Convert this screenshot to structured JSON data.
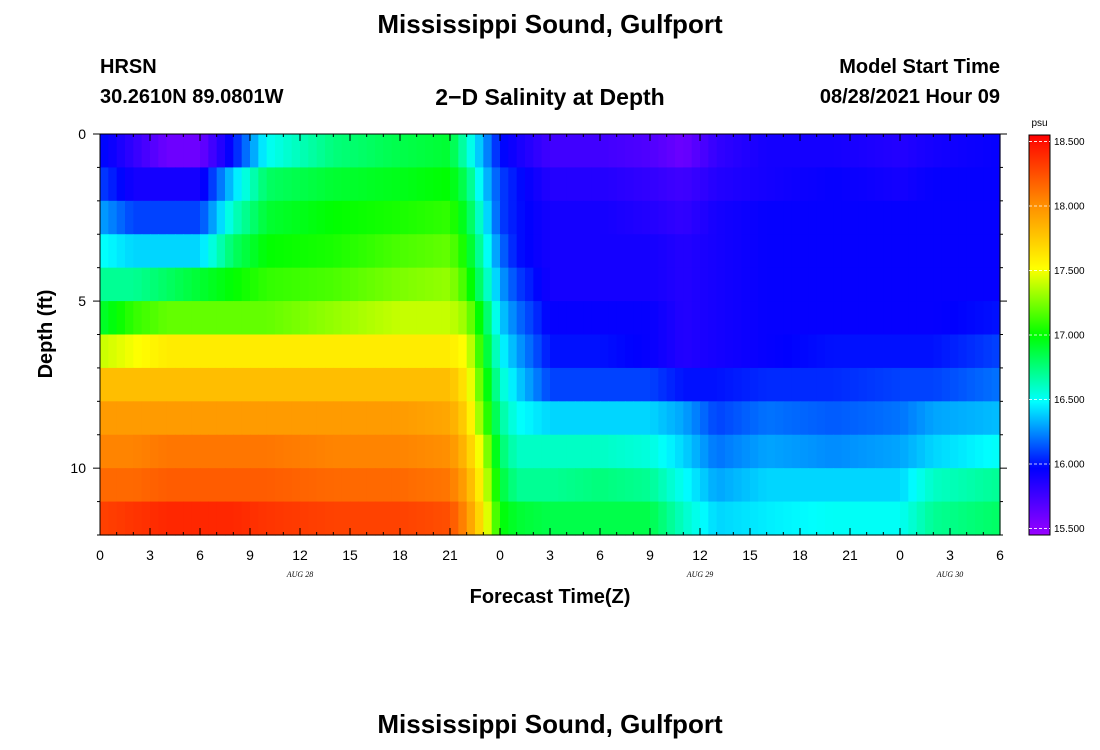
{
  "header": {
    "title": "Mississippi Sound, Gulfport",
    "station_name": "HRSN",
    "station_coords": "30.2610N  89.0801W",
    "plot_title": "2−D Salinity at Depth",
    "model_label": "Model Start Time",
    "model_time": "08/28/2021 Hour 09"
  },
  "footer": {
    "title": "Mississippi Sound, Gulfport"
  },
  "chart_data": {
    "type": "heatmap",
    "title": "2−D Salinity at Depth",
    "xlabel": "Forecast Time(Z)",
    "ylabel": "Depth (ft)",
    "x_range_hours": [
      0,
      54
    ],
    "y_range_ft": [
      0,
      12
    ],
    "y_inverted": true,
    "x_ticks": [
      "0",
      "3",
      "6",
      "9",
      "12",
      "15",
      "18",
      "21",
      "0",
      "3",
      "6",
      "9",
      "12",
      "15",
      "18",
      "21",
      "0",
      "3",
      "6"
    ],
    "y_ticks": [
      {
        "value": 0,
        "label": "0"
      },
      {
        "value": 5,
        "label": "5"
      },
      {
        "value": 10,
        "label": "10"
      }
    ],
    "date_labels": [
      {
        "hour": 12,
        "label": "AUG  28"
      },
      {
        "hour": 36,
        "label": "AUG  29"
      },
      {
        "hour": 51,
        "label": "AUG  30"
      }
    ],
    "colorbar": {
      "unit": "psu",
      "min": 15.45,
      "max": 18.55,
      "ticks": [
        "15.500",
        "16.000",
        "16.500",
        "17.000",
        "17.500",
        "18.000",
        "18.500"
      ],
      "colors": [
        "#9900ff",
        "#0000ff",
        "#00ffff",
        "#00ff00",
        "#ffff00",
        "#ff8800",
        "#ff0000"
      ]
    },
    "depths_ft": [
      0.5,
      1.5,
      2.5,
      3.5,
      4.5,
      5.5,
      6.5,
      7.5,
      8.5,
      9.5,
      10.5,
      11.5
    ],
    "profiles": [
      {
        "hour": 0,
        "salinity": [
          16.0,
          16.1,
          16.3,
          16.5,
          16.7,
          16.9,
          17.4,
          17.8,
          17.95,
          18.05,
          18.15,
          18.3
        ]
      },
      {
        "hour": 2,
        "salinity": [
          15.8,
          15.9,
          16.1,
          16.4,
          16.7,
          17.1,
          17.5,
          17.8,
          17.95,
          18.05,
          18.15,
          18.35
        ]
      },
      {
        "hour": 4,
        "salinity": [
          15.6,
          15.9,
          16.1,
          16.4,
          16.8,
          17.2,
          17.6,
          17.8,
          17.95,
          18.1,
          18.2,
          18.4
        ]
      },
      {
        "hour": 6,
        "salinity": [
          15.6,
          15.9,
          16.1,
          16.4,
          16.9,
          17.2,
          17.6,
          17.8,
          17.95,
          18.1,
          18.2,
          18.4
        ]
      },
      {
        "hour": 8,
        "salinity": [
          16.0,
          16.4,
          16.6,
          16.8,
          17.0,
          17.2,
          17.6,
          17.8,
          17.95,
          18.1,
          18.2,
          18.4
        ]
      },
      {
        "hour": 10,
        "salinity": [
          16.5,
          16.8,
          16.9,
          17.0,
          17.1,
          17.2,
          17.6,
          17.8,
          17.95,
          18.1,
          18.2,
          18.35
        ]
      },
      {
        "hour": 14,
        "salinity": [
          16.75,
          16.9,
          17.0,
          17.05,
          17.15,
          17.3,
          17.6,
          17.8,
          17.95,
          18.05,
          18.15,
          18.3
        ]
      },
      {
        "hour": 18,
        "salinity": [
          16.85,
          16.95,
          17.05,
          17.15,
          17.25,
          17.4,
          17.6,
          17.8,
          17.95,
          18.05,
          18.15,
          18.3
        ]
      },
      {
        "hour": 21,
        "salinity": [
          16.9,
          17.0,
          17.1,
          17.2,
          17.3,
          17.4,
          17.6,
          17.8,
          17.9,
          18.0,
          18.1,
          18.25
        ]
      },
      {
        "hour": 22,
        "salinity": [
          16.6,
          16.8,
          16.9,
          17.0,
          17.1,
          17.3,
          17.5,
          17.6,
          17.7,
          17.8,
          17.9,
          18.0
        ]
      },
      {
        "hour": 23,
        "salinity": [
          16.3,
          16.4,
          16.5,
          16.6,
          16.7,
          16.9,
          17.0,
          17.1,
          17.2,
          17.4,
          17.5,
          17.6
        ]
      },
      {
        "hour": 24,
        "salinity": [
          16.0,
          16.1,
          16.1,
          16.2,
          16.3,
          16.4,
          16.5,
          16.6,
          16.7,
          16.8,
          16.9,
          17.0
        ]
      },
      {
        "hour": 25,
        "salinity": [
          15.9,
          16.0,
          16.0,
          16.0,
          16.1,
          16.2,
          16.3,
          16.4,
          16.5,
          16.6,
          16.7,
          16.9
        ]
      },
      {
        "hour": 27,
        "salinity": [
          15.75,
          15.85,
          15.9,
          15.9,
          15.9,
          15.95,
          16.0,
          16.1,
          16.4,
          16.6,
          16.7,
          16.85
        ]
      },
      {
        "hour": 30,
        "salinity": [
          15.75,
          15.85,
          15.9,
          15.9,
          15.9,
          15.95,
          16.0,
          16.1,
          16.4,
          16.6,
          16.75,
          16.85
        ]
      },
      {
        "hour": 33,
        "salinity": [
          15.7,
          15.8,
          15.85,
          15.9,
          15.9,
          15.95,
          15.95,
          16.1,
          16.4,
          16.55,
          16.7,
          16.85
        ]
      },
      {
        "hour": 35,
        "salinity": [
          15.6,
          15.75,
          15.8,
          15.85,
          15.85,
          15.85,
          15.85,
          16.0,
          16.3,
          16.4,
          16.5,
          16.6
        ]
      },
      {
        "hour": 37,
        "salinity": [
          15.8,
          15.85,
          15.9,
          15.9,
          15.9,
          15.9,
          15.9,
          16.0,
          16.1,
          16.2,
          16.3,
          16.4
        ]
      },
      {
        "hour": 40,
        "salinity": [
          15.9,
          15.9,
          15.95,
          15.95,
          15.95,
          15.95,
          15.95,
          16.05,
          16.2,
          16.3,
          16.4,
          16.45
        ]
      },
      {
        "hour": 44,
        "salinity": [
          15.9,
          15.95,
          15.95,
          15.95,
          15.95,
          15.95,
          16.0,
          16.05,
          16.15,
          16.25,
          16.4,
          16.5
        ]
      },
      {
        "hour": 48,
        "salinity": [
          15.85,
          15.9,
          15.95,
          15.95,
          15.95,
          15.95,
          16.0,
          16.1,
          16.2,
          16.3,
          16.4,
          16.5
        ]
      },
      {
        "hour": 50,
        "salinity": [
          15.9,
          15.95,
          15.95,
          15.95,
          15.95,
          15.95,
          16.0,
          16.1,
          16.3,
          16.4,
          16.6,
          16.7
        ]
      },
      {
        "hour": 54,
        "salinity": [
          15.95,
          15.95,
          15.95,
          15.95,
          15.95,
          16.0,
          16.1,
          16.2,
          16.35,
          16.5,
          16.7,
          16.8
        ]
      }
    ]
  }
}
